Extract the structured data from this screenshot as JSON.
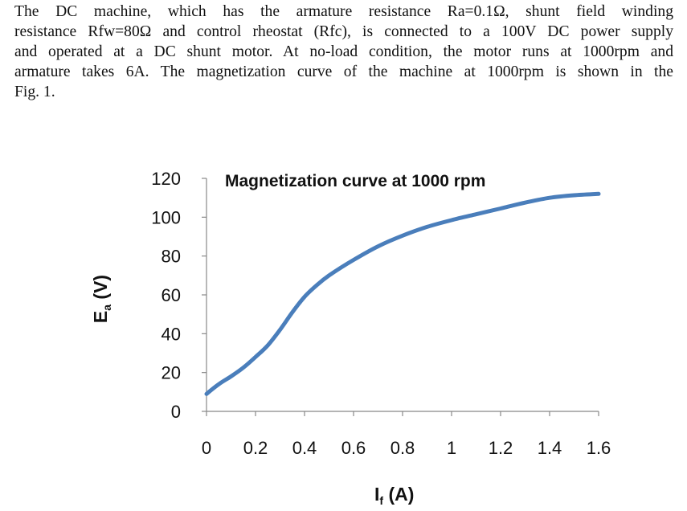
{
  "problem": {
    "line1": "The DC machine, which has the armature resistance Ra=0.1Ω, shunt field winding",
    "line2": "resistance Rfw=80Ω and control rheostat (Rfc), is connected to a 100V DC power supply",
    "line3": "and operated at a DC shunt motor. At no-load condition, the motor runs at 1000rpm and",
    "line4": "armature takes 6A. The magnetization curve of the machine at 1000rpm is shown in the",
    "line5": "Fig. 1."
  },
  "chart_data": {
    "type": "line",
    "title": "Magnetization curve at 1000 rpm",
    "xlabel_main": "I",
    "xlabel_sub": "f",
    "xlabel_unit": " (A)",
    "ylabel_main": "E",
    "ylabel_sub": "a",
    "ylabel_unit": " (V)",
    "xlim": [
      0,
      1.6
    ],
    "ylim": [
      0,
      120
    ],
    "xticks": [
      0,
      0.2,
      0.4,
      0.6,
      0.8,
      1,
      1.2,
      1.4,
      1.6
    ],
    "xtick_labels": [
      "0",
      "0.2",
      "0.4",
      "0.6",
      "0.8",
      "1",
      "1.2",
      "1.4",
      "1.6"
    ],
    "yticks": [
      0,
      20,
      40,
      60,
      80,
      100,
      120
    ],
    "ytick_labels": [
      "0",
      "20",
      "40",
      "60",
      "80",
      "100",
      "120"
    ],
    "grid": false,
    "line_color": "#4a7ebb",
    "series": [
      {
        "x": [
          0,
          0.05,
          0.1,
          0.15,
          0.2,
          0.25,
          0.3,
          0.35,
          0.4,
          0.45,
          0.5,
          0.6,
          0.7,
          0.8,
          0.9,
          1.0,
          1.1,
          1.2,
          1.3,
          1.4,
          1.5,
          1.6
        ],
        "y": [
          9,
          14,
          18,
          22.5,
          28,
          34,
          42,
          51,
          59,
          65,
          70,
          78,
          85,
          90.5,
          95,
          98.5,
          101.5,
          104.5,
          107.5,
          110,
          111.3,
          112
        ]
      }
    ]
  }
}
